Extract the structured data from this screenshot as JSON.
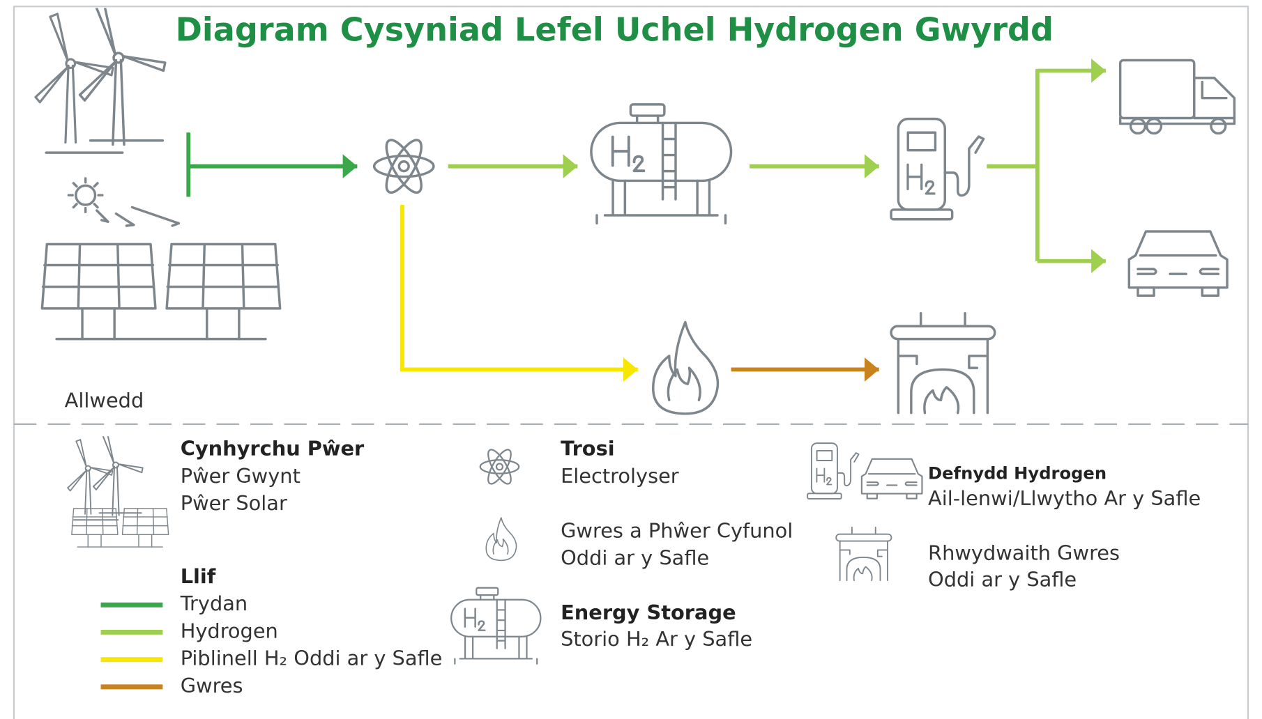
{
  "title": "Diagram Cysyniad Lefel Uchel Hydrogen Gwyrdd",
  "key_label": "Allwedd",
  "legend": {
    "power_generation": {
      "heading": "Cynhyrchu Pŵer",
      "items": [
        "Pŵer Gwynt",
        "Pŵer Solar"
      ]
    },
    "flow": {
      "heading": "Llif",
      "items": [
        {
          "label": "Trydan",
          "color": "#3aa74a"
        },
        {
          "label": "Hydrogen",
          "color": "#9fcf4e"
        },
        {
          "label": "Piblinell H₂ Oddi ar y Safle",
          "color": "#f7e600"
        },
        {
          "label": "Gwres",
          "color": "#c8821e"
        }
      ]
    },
    "conversion": {
      "heading": "Trosi",
      "items": [
        "Electrolyser"
      ]
    },
    "chp": {
      "lines": [
        "Gwres a Phŵer Cyfunol",
        "Oddi ar y Safle"
      ]
    },
    "storage": {
      "heading": "Energy Storage",
      "items": [
        "Storio H₂ Ar y Safle"
      ]
    },
    "hydrogen_use": {
      "heading": "Defnydd Hydrogen",
      "items": [
        "Ail-lenwi/Llwytho Ar y Safle"
      ]
    },
    "heat_network": {
      "lines": [
        "Rhwydwaith Gwres",
        "Oddi ar y Safle"
      ]
    }
  }
}
